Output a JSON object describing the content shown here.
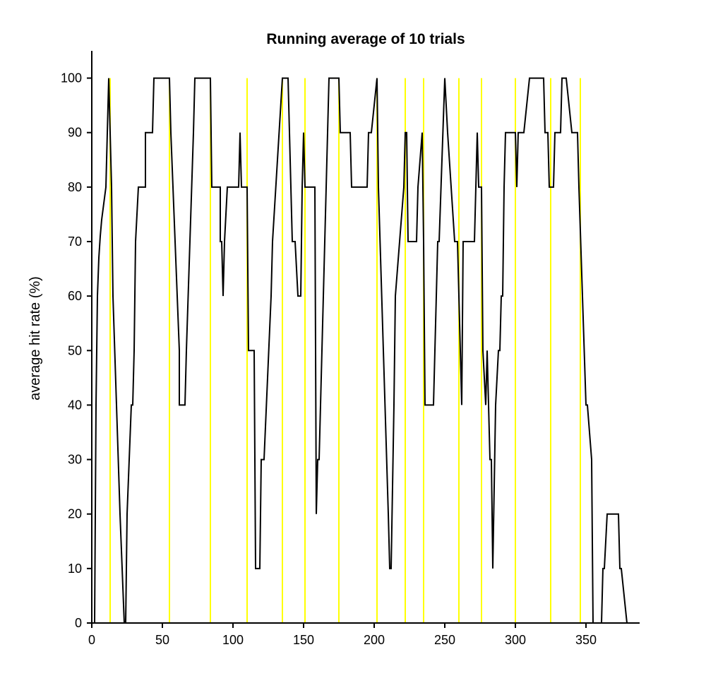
{
  "chart_data": {
    "type": "line",
    "title": "Running average of 10 trials",
    "xlabel": "",
    "ylabel": "average hit rate (%)",
    "xlim": [
      0,
      388
    ],
    "ylim": [
      0,
      105
    ],
    "x_ticks": [
      0,
      50,
      100,
      150,
      200,
      250,
      300,
      350
    ],
    "y_ticks": [
      0,
      10,
      20,
      30,
      40,
      50,
      60,
      70,
      80,
      90,
      100
    ],
    "grid": false,
    "line_color": "#000000",
    "marker_color": "#ffff00",
    "markers_x": [
      13,
      55,
      84,
      110,
      135,
      151,
      175,
      202,
      222,
      235,
      260,
      276,
      300,
      325,
      346
    ],
    "series": [
      {
        "x": [
          0,
          2,
          3,
          4,
          5,
          6,
          7,
          8,
          9,
          10,
          11,
          12,
          13,
          14,
          15,
          20,
          23,
          24,
          25,
          28,
          28,
          29,
          30,
          30,
          31,
          33,
          34,
          35,
          38,
          38,
          39,
          40,
          40,
          43,
          44,
          45,
          45,
          55,
          56,
          62,
          62,
          63,
          66,
          67,
          72,
          73,
          84,
          85,
          87,
          88,
          91,
          91,
          92,
          93,
          94,
          96,
          97,
          104,
          105,
          105,
          106,
          110,
          111,
          115,
          116,
          117,
          119,
          120,
          122,
          127,
          128,
          135,
          136,
          138,
          139,
          142,
          143,
          144,
          146,
          147,
          148,
          149,
          150,
          151,
          158,
          159,
          160,
          161,
          162,
          167,
          168,
          175,
          176,
          181,
          182,
          183,
          184,
          193,
          194,
          195,
          196,
          197,
          198,
          202,
          203,
          210,
          211,
          212,
          214,
          215,
          221,
          222,
          223,
          224,
          225,
          230,
          231,
          234,
          235,
          236,
          241,
          242,
          245,
          246,
          250,
          252,
          257,
          258,
          259,
          262,
          263,
          265,
          266,
          271,
          272,
          273,
          274,
          275,
          276,
          277,
          279,
          280,
          281,
          282,
          283,
          284,
          286,
          288,
          289,
          290,
          291,
          292,
          293,
          294,
          295,
          300,
          301,
          302,
          303,
          305,
          306,
          306,
          310,
          311,
          319,
          320,
          321,
          323,
          324,
          324,
          327,
          328,
          332,
          333,
          335,
          336,
          340,
          341,
          344,
          345,
          350,
          351,
          354,
          355,
          360,
          361,
          362,
          363,
          365,
          366,
          372,
          373,
          374,
          375,
          379
        ],
        "values": [
          0,
          0,
          40,
          60,
          67,
          71,
          74,
          76,
          78,
          80,
          90,
          100,
          90,
          80,
          60,
          20,
          0,
          0,
          20,
          40,
          40,
          40,
          50,
          50,
          70,
          80,
          80,
          80,
          80,
          90,
          90,
          90,
          90,
          90,
          100,
          100,
          100,
          100,
          90,
          50,
          40,
          40,
          40,
          50,
          90,
          100,
          100,
          80,
          80,
          80,
          80,
          70,
          70,
          60,
          70,
          80,
          80,
          80,
          90,
          90,
          80,
          80,
          50,
          50,
          10,
          10,
          10,
          30,
          30,
          60,
          70,
          100,
          100,
          100,
          100,
          70,
          70,
          70,
          60,
          60,
          60,
          80,
          90,
          80,
          80,
          20,
          30,
          30,
          40,
          90,
          100,
          100,
          90,
          90,
          90,
          90,
          80,
          80,
          80,
          80,
          90,
          90,
          90,
          100,
          80,
          20,
          10,
          10,
          40,
          60,
          80,
          90,
          90,
          70,
          70,
          70,
          80,
          90,
          70,
          40,
          40,
          40,
          70,
          70,
          100,
          90,
          70,
          70,
          70,
          40,
          70,
          70,
          70,
          70,
          80,
          90,
          80,
          80,
          80,
          50,
          40,
          50,
          40,
          30,
          30,
          10,
          40,
          50,
          50,
          60,
          60,
          80,
          90,
          90,
          90,
          90,
          80,
          90,
          90,
          90,
          90,
          90,
          100,
          100,
          100,
          100,
          90,
          90,
          80,
          80,
          80,
          90,
          90,
          100,
          100,
          100,
          90,
          90,
          90,
          80,
          40,
          40,
          30,
          0,
          0,
          0,
          10,
          10,
          20,
          20,
          20,
          20,
          10,
          10,
          0
        ]
      }
    ]
  }
}
